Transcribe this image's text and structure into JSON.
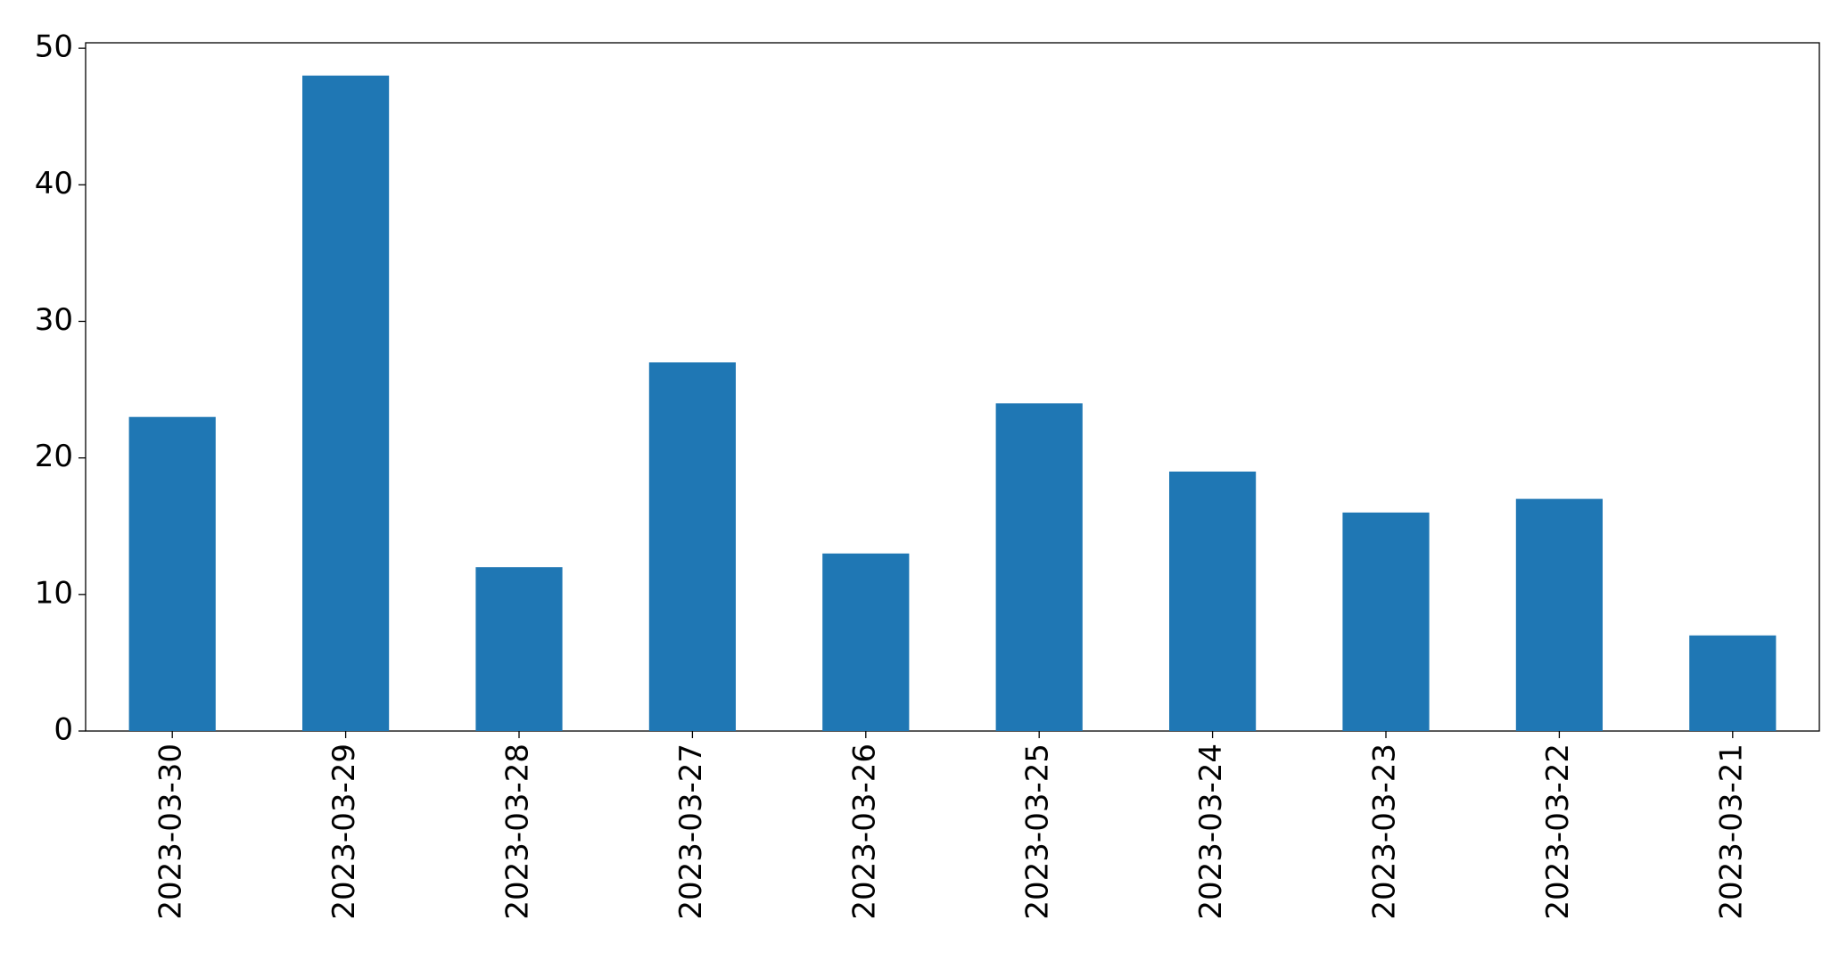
{
  "chart_data": {
    "type": "bar",
    "categories": [
      "2023-03-30",
      "2023-03-29",
      "2023-03-28",
      "2023-03-27",
      "2023-03-26",
      "2023-03-25",
      "2023-03-24",
      "2023-03-23",
      "2023-03-22",
      "2023-03-21"
    ],
    "values": [
      23,
      48,
      12,
      27,
      13,
      24,
      19,
      16,
      17,
      7
    ],
    "color": "#1f77b4",
    "ylim": [
      0,
      50.4
    ],
    "yticks": [
      0,
      10,
      20,
      30,
      40,
      50
    ],
    "grid": false
  }
}
